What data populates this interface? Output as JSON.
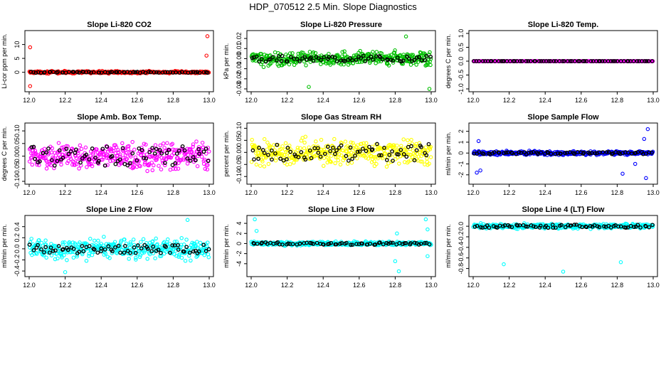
{
  "main_title": "HDP_070512  2.5 Min. Slope Diagnostics",
  "chart_data": [
    {
      "type": "scatter",
      "title": "Slope Li-820 CO2",
      "ylabel": "Li-cor ppm per min.",
      "xlim": [
        12.0,
        13.0
      ],
      "ylim": [
        -6,
        14
      ],
      "xticks": [
        "12.0",
        "12.2",
        "12.4",
        "12.6",
        "12.8",
        "13.0"
      ],
      "yticks": [
        {
          "v": 0,
          "label": "0"
        },
        {
          "v": 5,
          "label": "5"
        },
        {
          "v": 10,
          "label": "10"
        }
      ],
      "color": "#ff0000",
      "noise": 0.35,
      "outliers": [
        {
          "x": 12.005,
          "y": 9.0
        },
        {
          "x": 12.005,
          "y": -5.0
        },
        {
          "x": 12.99,
          "y": 13.0
        },
        {
          "x": 12.985,
          "y": 6.0
        }
      ],
      "black_spread": 0.2
    },
    {
      "type": "scatter",
      "title": "Slope Li-820 Pressure",
      "ylabel": "kPa per min.",
      "xlim": [
        12.0,
        13.0
      ],
      "ylim": [
        -0.03,
        0.025
      ],
      "xticks": [
        "12.0",
        "12.2",
        "12.4",
        "12.6",
        "12.8",
        "13.0"
      ],
      "yticks": [
        {
          "v": -0.03,
          "label": "-0.03"
        },
        {
          "v": -0.02,
          "label": "-0.02"
        },
        {
          "v": -0.01,
          "label": "-0.01"
        },
        {
          "v": 0.0,
          "label": "0.00"
        },
        {
          "v": 0.01,
          "label": "0.01"
        },
        {
          "v": 0.02,
          "label": "0.02"
        }
      ],
      "color": "#00c000",
      "noise": 0.006,
      "outliers": [
        {
          "x": 12.32,
          "y": -0.028
        },
        {
          "x": 12.99,
          "y": -0.03
        },
        {
          "x": 12.86,
          "y": 0.022
        }
      ],
      "black_spread": 0.003
    },
    {
      "type": "scatter",
      "title": "Slope Li-820 Temp.",
      "ylabel": "degrees C per min.",
      "xlim": [
        12.0,
        13.0
      ],
      "ylim": [
        -1.0,
        1.0
      ],
      "xticks": [
        "12.0",
        "12.2",
        "12.4",
        "12.6",
        "12.8",
        "13.0"
      ],
      "yticks": [
        {
          "v": -1.0,
          "label": "-1.0"
        },
        {
          "v": -0.5,
          "label": "-0.5"
        },
        {
          "v": 0.0,
          "label": "0.0"
        },
        {
          "v": 0.5,
          "label": "0.5"
        },
        {
          "v": 1.0,
          "label": "1.0"
        }
      ],
      "color": "#ff00ff",
      "noise": 0.0,
      "outliers": [],
      "black_spread": 0.0
    },
    {
      "type": "scatter",
      "title": "Slope Amb. Box Temp.",
      "ylabel": "degrees C per min.",
      "xlim": [
        12.0,
        13.0
      ],
      "ylim": [
        -0.1,
        0.12
      ],
      "xticks": [
        "12.0",
        "12.2",
        "12.4",
        "12.6",
        "12.8",
        "13.0"
      ],
      "yticks": [
        {
          "v": -0.1,
          "label": "-0.10"
        },
        {
          "v": -0.05,
          "label": "-0.05"
        },
        {
          "v": 0.0,
          "label": "0.00"
        },
        {
          "v": 0.05,
          "label": "0.05"
        },
        {
          "v": 0.1,
          "label": "0.10"
        }
      ],
      "color": "#ff00ff",
      "noise": 0.045,
      "outliers": [],
      "black_spread": 0.04
    },
    {
      "type": "scatter",
      "title": "Slope Gas Stream RH",
      "ylabel": "percent per min.",
      "xlim": [
        12.0,
        13.0
      ],
      "ylim": [
        -0.12,
        0.11
      ],
      "xticks": [
        "12.0",
        "12.2",
        "12.4",
        "12.6",
        "12.8",
        "13.0"
      ],
      "yticks": [
        {
          "v": -0.1,
          "label": "-0.10"
        },
        {
          "v": -0.05,
          "label": "-0.05"
        },
        {
          "v": 0.0,
          "label": "0.00"
        },
        {
          "v": 0.05,
          "label": "0.05"
        },
        {
          "v": 0.1,
          "label": "0.10"
        }
      ],
      "color": "#ffff00",
      "noise": 0.045,
      "outliers": [],
      "black_spread": 0.035
    },
    {
      "type": "scatter",
      "title": "Slope Sample Flow",
      "ylabel": "ml/min per min.",
      "xlim": [
        12.0,
        13.0
      ],
      "ylim": [
        -2.6,
        2.5
      ],
      "xticks": [
        "12.0",
        "12.2",
        "12.4",
        "12.6",
        "12.8",
        "13.0"
      ],
      "yticks": [
        {
          "v": -2,
          "label": "-2"
        },
        {
          "v": -1,
          "label": "-1"
        },
        {
          "v": 0,
          "label": "0"
        },
        {
          "v": 1,
          "label": "1"
        },
        {
          "v": 2,
          "label": "2"
        }
      ],
      "color": "#0000ff",
      "noise": 0.15,
      "outliers": [
        {
          "x": 12.02,
          "y": -1.8
        },
        {
          "x": 12.04,
          "y": -1.6
        },
        {
          "x": 12.03,
          "y": 1.1
        },
        {
          "x": 12.83,
          "y": -1.9
        },
        {
          "x": 12.97,
          "y": 2.2
        },
        {
          "x": 12.96,
          "y": -2.3
        },
        {
          "x": 12.95,
          "y": 1.3
        },
        {
          "x": 12.9,
          "y": -1.0
        }
      ],
      "black_spread": 0.1
    },
    {
      "type": "scatter",
      "title": "Slope Line 2 Flow",
      "ylabel": "ml/min per min.",
      "xlim": [
        12.0,
        13.0
      ],
      "ylim": [
        -0.45,
        0.55
      ],
      "xticks": [
        "12.0",
        "12.2",
        "12.4",
        "12.6",
        "12.8",
        "13.0"
      ],
      "yticks": [
        {
          "v": -0.4,
          "label": "-0.4"
        },
        {
          "v": -0.2,
          "label": "-0.2"
        },
        {
          "v": 0.0,
          "label": "0.0"
        },
        {
          "v": 0.2,
          "label": "0.2"
        },
        {
          "v": 0.4,
          "label": "0.4"
        }
      ],
      "color": "#00ffff",
      "noise": 0.16,
      "outliers": [
        {
          "x": 12.2,
          "y": -0.42
        },
        {
          "x": 12.88,
          "y": 0.52
        }
      ],
      "black_spread": 0.08
    },
    {
      "type": "scatter",
      "title": "Slope Line 3 Flow",
      "ylabel": "ml/min per min.",
      "xlim": [
        12.0,
        13.0
      ],
      "ylim": [
        -6,
        5
      ],
      "xticks": [
        "12.0",
        "12.2",
        "12.4",
        "12.6",
        "12.8",
        "13.0"
      ],
      "yticks": [
        {
          "v": -4,
          "label": "-4"
        },
        {
          "v": -2,
          "label": "-2"
        },
        {
          "v": 0,
          "label": "0"
        },
        {
          "v": 2,
          "label": "2"
        },
        {
          "v": 4,
          "label": "4"
        }
      ],
      "color": "#00ffff",
      "noise": 0.3,
      "outliers": [
        {
          "x": 12.02,
          "y": 4.8
        },
        {
          "x": 12.03,
          "y": 2.5
        },
        {
          "x": 12.82,
          "y": -5.5
        },
        {
          "x": 12.8,
          "y": -3.5
        },
        {
          "x": 12.97,
          "y": 4.8
        },
        {
          "x": 12.98,
          "y": 2.8
        },
        {
          "x": 12.98,
          "y": -2.5
        },
        {
          "x": 12.81,
          "y": 2.0
        }
      ],
      "black_spread": 0.25
    },
    {
      "type": "scatter",
      "title": "Slope Line 4 (LT) Flow",
      "ylabel": "ml/min per min.",
      "xlim": [
        12.0,
        13.0
      ],
      "ylim": [
        -0.9,
        0.15
      ],
      "xticks": [
        "12.0",
        "12.2",
        "12.4",
        "12.6",
        "12.8",
        "13.0"
      ],
      "yticks": [
        {
          "v": -0.8,
          "label": "-0.8"
        },
        {
          "v": -0.6,
          "label": "-0.6"
        },
        {
          "v": -0.4,
          "label": "-0.4"
        },
        {
          "v": -0.2,
          "label": "-0.2"
        },
        {
          "v": 0.0,
          "label": "0.0"
        }
      ],
      "color": "#00ffff",
      "noise": 0.04,
      "outliers": [
        {
          "x": 12.17,
          "y": -0.72
        },
        {
          "x": 12.5,
          "y": -0.86
        },
        {
          "x": 12.82,
          "y": -0.68
        }
      ],
      "black_spread": 0.03
    }
  ]
}
